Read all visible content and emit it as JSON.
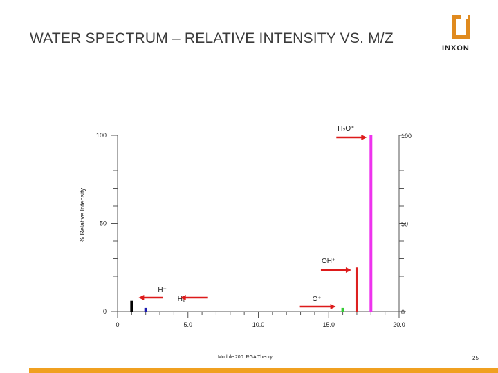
{
  "slide": {
    "title": "WATER SPECTRUM – RELATIVE INTENSITY VS. M/Z",
    "footer": "Module 200: RGA Theory",
    "page_number": "25",
    "logo_text": "INXON",
    "accent_color": "#f0a020",
    "logo_color": "#e08a1e"
  },
  "chart_data": {
    "type": "bar",
    "title": "",
    "xlabel": "",
    "ylabel": "% Relative Intensity",
    "xlim": [
      0,
      20
    ],
    "ylim": [
      0,
      100
    ],
    "x_ticks": [
      "0",
      "5.0",
      "10.0",
      "15.0",
      "20.0"
    ],
    "y_ticks_left": [
      "0",
      "50",
      "100"
    ],
    "y_ticks_right": [
      "0",
      "50",
      "100"
    ],
    "bars": [
      {
        "mz": 1,
        "value": 6,
        "color": "#000000"
      },
      {
        "mz": 2,
        "value": 2,
        "color": "#1a1ab0"
      },
      {
        "mz": 16,
        "value": 2,
        "color": "#33cc33"
      },
      {
        "mz": 17,
        "value": 25,
        "color": "#dd2020"
      },
      {
        "mz": 18,
        "value": 100,
        "color": "#ee33ee"
      }
    ],
    "annotations": [
      {
        "label": "H₂O⁺",
        "mz": 18,
        "value": 100
      },
      {
        "label": "OH⁺",
        "mz": 17,
        "value": 25
      },
      {
        "label": "H⁺",
        "mz": 1,
        "value": 6
      },
      {
        "label": "H₂⁺",
        "mz": 2,
        "value": 2
      },
      {
        "label": "O⁺",
        "mz": 16,
        "value": 2
      }
    ],
    "arrow_color": "#dd1a1a"
  }
}
